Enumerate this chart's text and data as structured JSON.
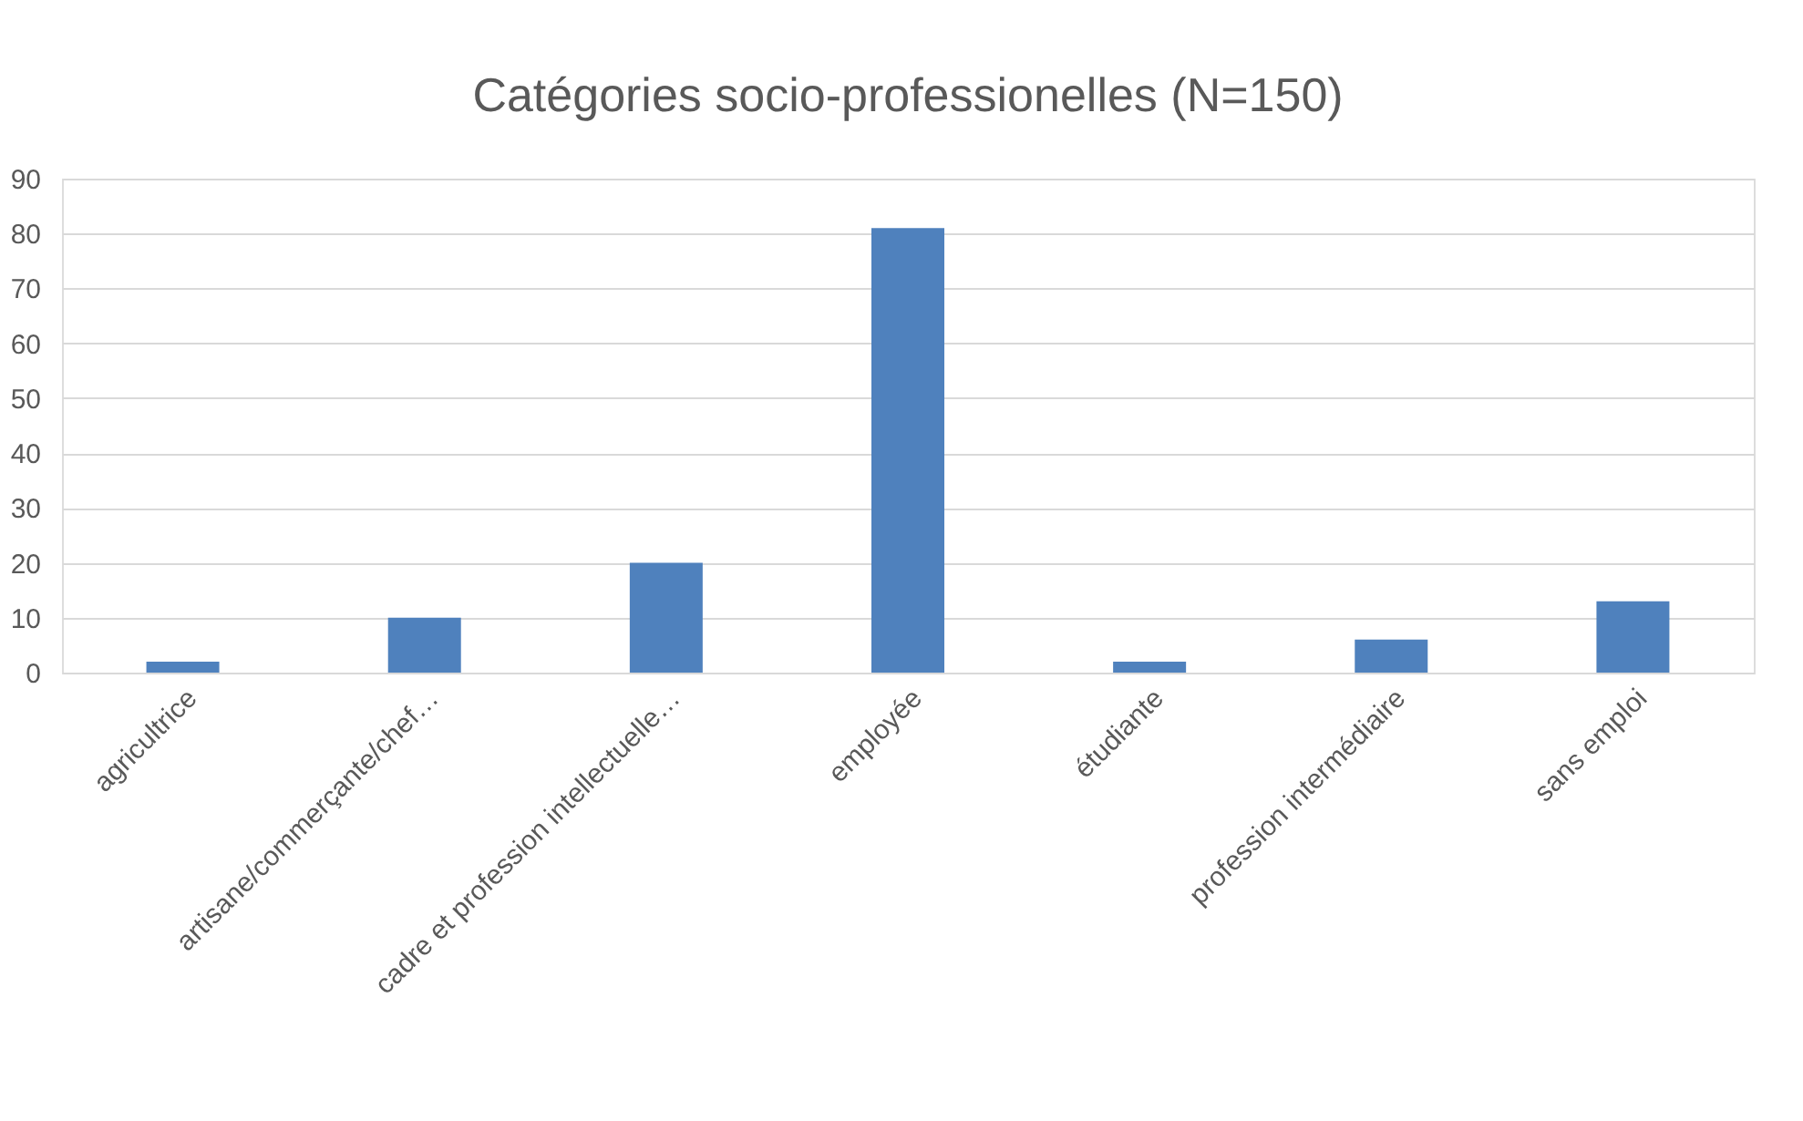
{
  "chart_data": {
    "type": "bar",
    "title": "Catégories socio-professionelles (N=150)",
    "categories": [
      "agricultrice",
      "artisane/commerçante/chef…",
      "cadre et profession intellectuelle…",
      "employée",
      "étudiante",
      "profession intermédiaire",
      "sans emploi"
    ],
    "values": [
      2,
      10,
      20,
      81,
      2,
      6,
      13
    ],
    "color": "#4f81bd",
    "ylim": [
      0,
      90
    ],
    "yticks": [
      0,
      10,
      20,
      30,
      40,
      50,
      60,
      70,
      80,
      90
    ],
    "grid": "y"
  }
}
